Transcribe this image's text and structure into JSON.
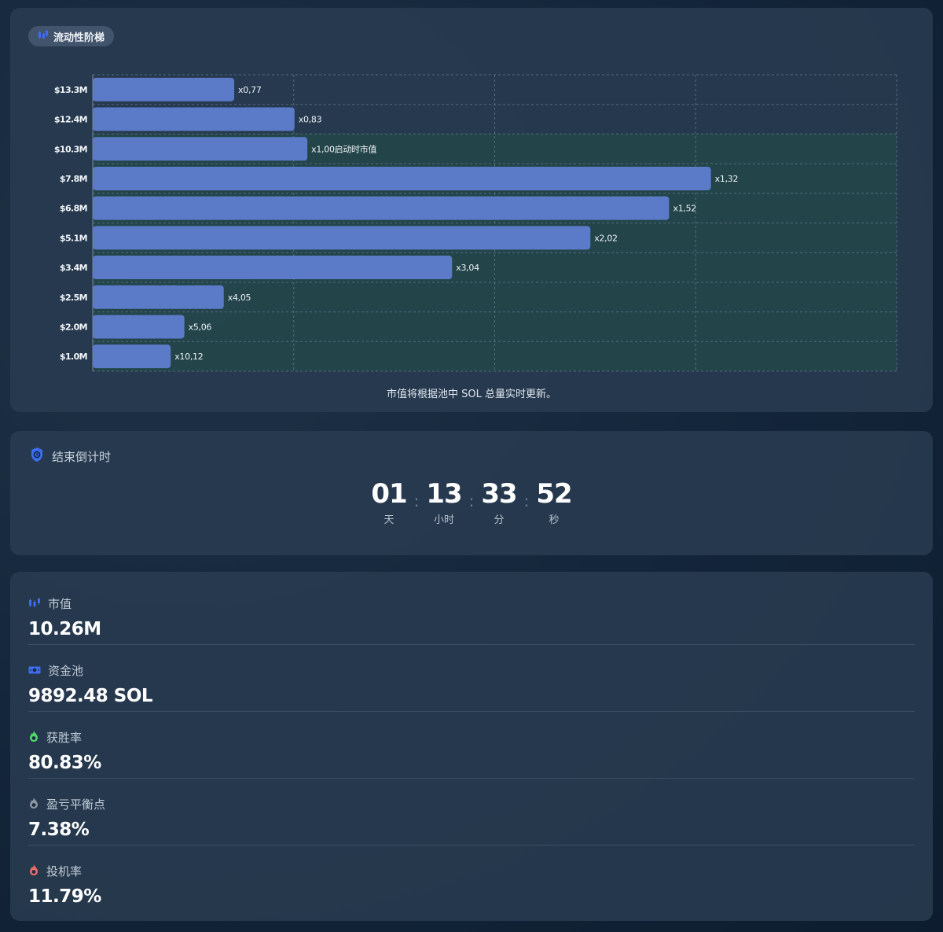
{
  "chart_card": {
    "title": "流动性阶梯",
    "note": "市值将根据池中 SOL 总量实时更新。"
  },
  "chart_data": {
    "type": "bar",
    "orientation": "horizontal",
    "categories": [
      "$13.3M",
      "$12.4M",
      "$10.3M",
      "$7.8M",
      "$6.8M",
      "$5.1M",
      "$3.4M",
      "$2.5M",
      "$2.0M",
      "$1.0M"
    ],
    "values": [
      0.77,
      0.83,
      1.0,
      1.32,
      1.52,
      2.02,
      3.04,
      4.05,
      5.06,
      10.12
    ],
    "bar_lengths_relative": [
      0.176,
      0.251,
      0.267,
      0.769,
      0.717,
      0.619,
      0.447,
      0.163,
      0.114,
      0.097
    ],
    "data_labels": [
      "x0,77",
      "x0,83",
      "x1,00",
      "x1,32",
      "x1,52",
      "x2,02",
      "x3,04",
      "x4,05",
      "x5,06",
      "x10,12"
    ],
    "annotation": {
      "category": "$10.3M",
      "text": "启动时市值"
    },
    "highlight_region": "from $10.3M down to $1.0M",
    "grid": true,
    "bar_color": "#5b7bc8",
    "highlight_color": "#234a4a"
  },
  "countdown": {
    "title": "结束倒计时",
    "units": [
      {
        "value": "01",
        "label": "天"
      },
      {
        "value": "13",
        "label": "小时"
      },
      {
        "value": "33",
        "label": "分"
      },
      {
        "value": "52",
        "label": "秒"
      }
    ],
    "separator": ":"
  },
  "stats": [
    {
      "label": "市值",
      "value": "10.26M",
      "icon": "chart-candle-icon"
    },
    {
      "label": "资金池",
      "value": "9892.48 SOL",
      "icon": "cash-icon"
    },
    {
      "label": "获胜率",
      "value": "80.83%",
      "icon": "green-flame-icon"
    },
    {
      "label": "盈亏平衡点",
      "value": "7.38%",
      "icon": "gray-flame-icon"
    },
    {
      "label": "投机率",
      "value": "11.79%",
      "icon": "red-flame-icon"
    }
  ],
  "colors": {
    "accent_blue": "#3d6df2",
    "green": "#4fdb6a",
    "gray": "#8c96a3",
    "red": "#f06b6b"
  }
}
